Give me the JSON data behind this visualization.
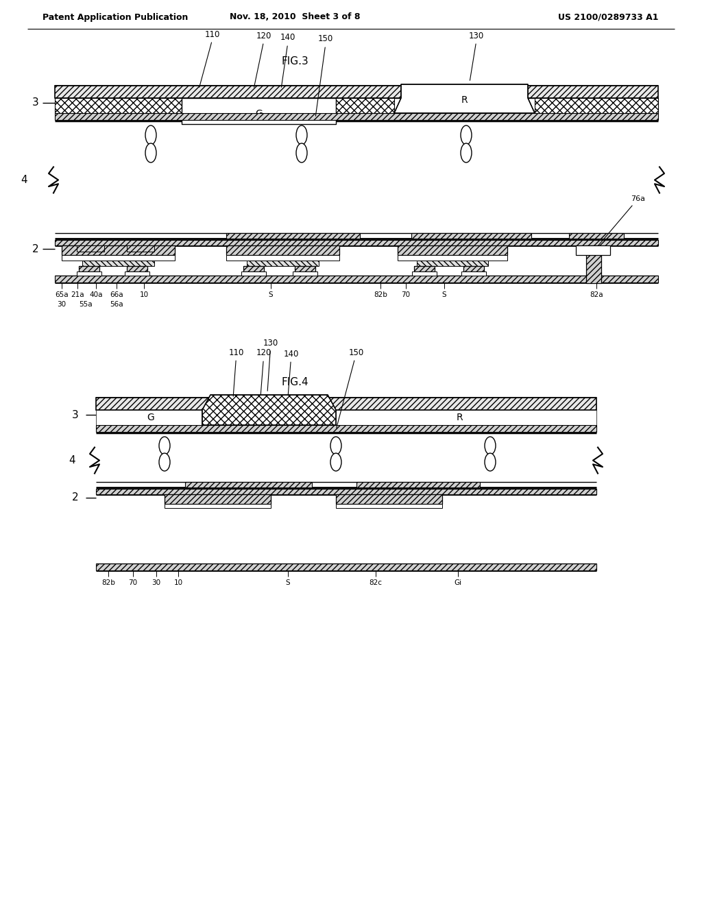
{
  "title_left": "Patent Application Publication",
  "title_mid": "Nov. 18, 2010  Sheet 3 of 8",
  "title_right": "US 2100/0289733 A1",
  "fig3_label": "FIG.3",
  "fig4_label": "FIG.4",
  "background": "#ffffff"
}
